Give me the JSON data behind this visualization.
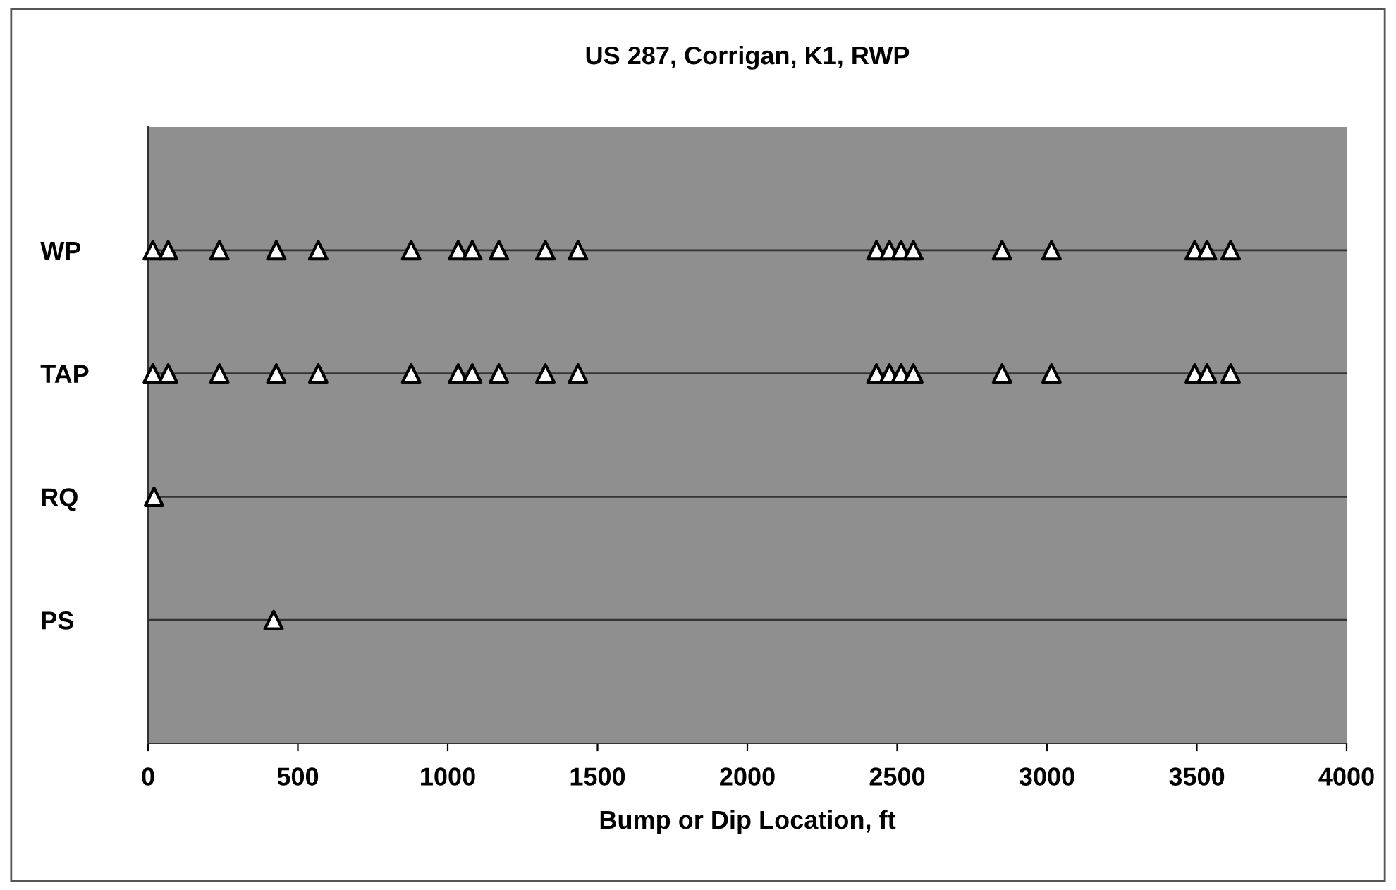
{
  "chart_data": {
    "type": "scatter",
    "title": "US 287, Corrigan, K1, RWP",
    "xlabel": "Bump or Dip Location, ft",
    "orientation": "horizontal",
    "categories": [
      "WP",
      "TAP",
      "RQ",
      "PS"
    ],
    "series": [
      {
        "color": "#ffffff",
        "values": [
          16,
          16,
          20,
          419
        ]
      },
      {
        "color": "#ffffff",
        "values": [
          67,
          67,
          null,
          null
        ]
      },
      {
        "color": "#ffffff",
        "values": [
          238,
          238,
          null,
          null
        ]
      },
      {
        "color": "#ffffff",
        "values": [
          428,
          428,
          null,
          null
        ]
      },
      {
        "color": "#ffffff",
        "values": [
          568,
          568,
          null,
          null
        ]
      },
      {
        "color": "#ffffff",
        "values": [
          878,
          878,
          null,
          null
        ]
      },
      {
        "color": "#ffffff",
        "values": [
          1035,
          1035,
          null,
          null
        ]
      },
      {
        "color": "#ffffff",
        "values": [
          1082,
          1082,
          null,
          null
        ]
      },
      {
        "color": "#ffffff",
        "values": [
          1171,
          1171,
          null,
          null
        ]
      },
      {
        "color": "#ffffff",
        "values": [
          1326,
          1326,
          null,
          null
        ]
      },
      {
        "color": "#ffffff",
        "values": [
          1435,
          1435,
          null,
          null
        ]
      },
      {
        "color": "#ffffff",
        "values": [
          2431,
          2431,
          null,
          null
        ]
      },
      {
        "color": "#ffffff",
        "values": [
          2474,
          2474,
          null,
          null
        ]
      },
      {
        "color": "#ffffff",
        "values": [
          2513,
          2513,
          null,
          null
        ]
      },
      {
        "color": "#ffffff",
        "values": [
          2554,
          2554,
          null,
          null
        ]
      },
      {
        "color": "#ffffff",
        "values": [
          2850,
          2850,
          null,
          null
        ]
      },
      {
        "color": "#ffffff",
        "values": [
          3015,
          3015,
          null,
          null
        ]
      },
      {
        "color": "#ffffff",
        "values": [
          3493,
          3493,
          null,
          null
        ]
      },
      {
        "color": "#ffffff",
        "values": [
          3534,
          3534,
          null,
          null
        ]
      },
      {
        "color": "#ffffff",
        "values": [
          3613,
          3613,
          null,
          null
        ]
      }
    ],
    "xlim": [
      0,
      4000
    ],
    "xticks": [
      0,
      500,
      1000,
      1500,
      2000,
      2500,
      3000,
      3500,
      4000
    ],
    "grid": "y",
    "marker": "triangle"
  }
}
